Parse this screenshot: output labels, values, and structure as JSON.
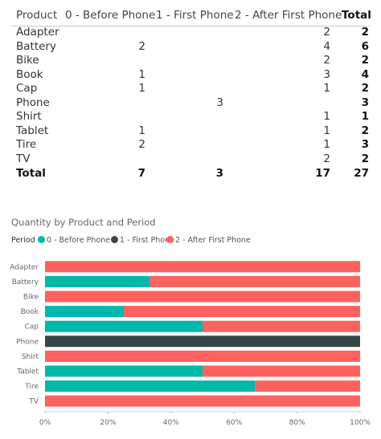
{
  "matrix": {
    "headers": [
      "Product",
      "0 - Before Phone",
      "1 - First Phone",
      "2 - After First Phone",
      "Total"
    ],
    "rows": [
      {
        "product": "Adapter",
        "before": "",
        "first": "",
        "after": "2",
        "total": "2"
      },
      {
        "product": "Battery",
        "before": "2",
        "first": "",
        "after": "4",
        "total": "6"
      },
      {
        "product": "Bike",
        "before": "",
        "first": "",
        "after": "2",
        "total": "2"
      },
      {
        "product": "Book",
        "before": "1",
        "first": "",
        "after": "3",
        "total": "4"
      },
      {
        "product": "Cap",
        "before": "1",
        "first": "",
        "after": "1",
        "total": "2"
      },
      {
        "product": "Phone",
        "before": "",
        "first": "3",
        "after": "",
        "total": "3"
      },
      {
        "product": "Shirt",
        "before": "",
        "first": "",
        "after": "1",
        "total": "1"
      },
      {
        "product": "Tablet",
        "before": "1",
        "first": "",
        "after": "1",
        "total": "2"
      },
      {
        "product": "Tire",
        "before": "2",
        "first": "",
        "after": "1",
        "total": "3"
      },
      {
        "product": "TV",
        "before": "",
        "first": "",
        "after": "2",
        "total": "2"
      }
    ],
    "total": {
      "label": "Total",
      "before": "7",
      "first": "3",
      "after": "17",
      "total": "27"
    }
  },
  "chart_data": {
    "type": "bar",
    "stacked": "100%",
    "orientation": "horizontal",
    "title": "Quantity by Product and Period",
    "legend_title": "Period",
    "legend_position": "top-left",
    "categories": [
      "Adapter",
      "Battery",
      "Bike",
      "Book",
      "Cap",
      "Phone",
      "Shirt",
      "Tablet",
      "Tire",
      "TV"
    ],
    "series": [
      {
        "name": "0 - Before Phone",
        "color": "#01B8AA",
        "values": [
          0,
          2,
          0,
          1,
          1,
          0,
          0,
          1,
          2,
          0
        ]
      },
      {
        "name": "1 - First Phone",
        "color": "#374649",
        "values": [
          0,
          0,
          0,
          0,
          0,
          3,
          0,
          0,
          0,
          0
        ]
      },
      {
        "name": "2 - After First Phone",
        "color": "#FD625E",
        "values": [
          2,
          4,
          2,
          3,
          1,
          0,
          1,
          1,
          1,
          2
        ]
      }
    ],
    "x_ticks": [
      "0%",
      "20%",
      "40%",
      "60%",
      "80%",
      "100%"
    ],
    "xlim": [
      0,
      100
    ],
    "grid": false
  }
}
